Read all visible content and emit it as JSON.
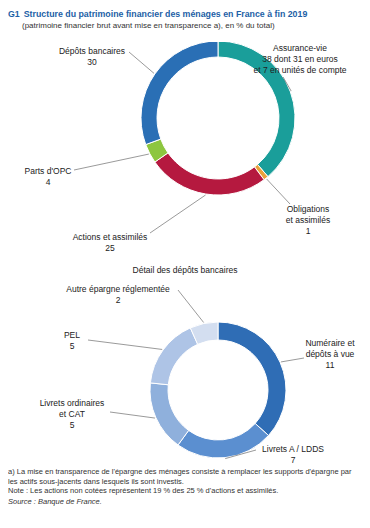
{
  "chart_data": [
    {
      "type": "donut",
      "figure": "G1",
      "title": "Structure du patrimoine financier des ménages en France à fin 2019",
      "subtitle": "(patrimoine financier brut avant mise en transparence a), en % du total)",
      "categories": [
        "Assurance-vie",
        "Obligations et assimilés",
        "Actions et assimilés",
        "Parts d'OPC",
        "Dépôts bancaires"
      ],
      "values": [
        38,
        1,
        25,
        4,
        30
      ],
      "value_labels": [
        "38 dont 31 en euros et 7 en unités de compte",
        "1",
        "25",
        "4",
        "30"
      ],
      "colors": [
        "#1a9e9a",
        "#e8a33d",
        "#b5193f",
        "#8dc63f",
        "#2a6fb5"
      ],
      "data_labels": true
    },
    {
      "type": "donut",
      "title": "Détail des dépôts bancaires",
      "categories": [
        "Numéraire et dépôts à vue",
        "Livrets A / LDDS",
        "Livrets ordinaires et CAT",
        "PEL",
        "Autre épargne réglementée"
      ],
      "values": [
        11,
        7,
        5,
        5,
        2
      ],
      "colors": [
        "#2f6db5",
        "#5b8fd0",
        "#8fb0dc",
        "#aec4e6",
        "#d3def0"
      ],
      "data_labels": true
    }
  ],
  "footnotes": [
    "a) La mise en transparence de l'épargne des ménages consiste à remplacer les supports d'épargne par les actifs sous-jacents dans lesquels ils sont investis.",
    "Note : Les actions non cotées représentent 19 % des 25 % d'actions et assimilés."
  ],
  "source": "Source : Banque de France."
}
